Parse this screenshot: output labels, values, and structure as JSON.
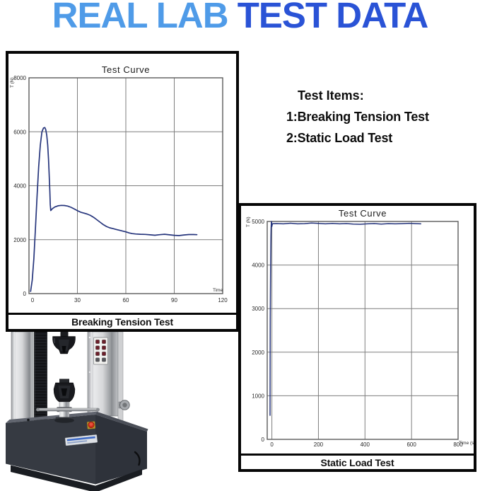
{
  "page_title": {
    "part1": "REAL LAB ",
    "part2": "TEST DATA",
    "part1_color": "#4F9BE8",
    "part2_color": "#2A53D6"
  },
  "test_items": {
    "heading": "Test Items:",
    "items": [
      "1:Breaking Tension Test",
      "2:Static Load Test"
    ]
  },
  "chart_data": [
    {
      "type": "line",
      "title": "Test Curve",
      "footer_label": "Breaking Tension Test",
      "xlabel": "Time",
      "ylabel": "T (N)",
      "xlim": [
        0,
        120
      ],
      "ylim": [
        0,
        8000
      ],
      "xticks": [
        0,
        30,
        60,
        90,
        120
      ],
      "yticks": [
        0,
        2000,
        4000,
        6000,
        8000
      ],
      "grid": true,
      "legend": "none",
      "line_color": "#26357C",
      "points": [
        [
          1,
          80
        ],
        [
          2,
          500
        ],
        [
          3,
          1300
        ],
        [
          4,
          2400
        ],
        [
          5,
          3600
        ],
        [
          6,
          4700
        ],
        [
          7,
          5500
        ],
        [
          8,
          6000
        ],
        [
          9,
          6140
        ],
        [
          9.8,
          6155
        ],
        [
          10.4,
          6080
        ],
        [
          11,
          5880
        ],
        [
          11.6,
          5500
        ],
        [
          12.1,
          5000
        ],
        [
          12.5,
          4450
        ],
        [
          12.9,
          3800
        ],
        [
          13.2,
          3300
        ],
        [
          13.5,
          3080
        ],
        [
          14.5,
          3150
        ],
        [
          16,
          3210
        ],
        [
          18,
          3255
        ],
        [
          20,
          3270
        ],
        [
          22,
          3265
        ],
        [
          24,
          3245
        ],
        [
          26,
          3200
        ],
        [
          28,
          3140
        ],
        [
          30,
          3075
        ],
        [
          32,
          3020
        ],
        [
          34,
          2985
        ],
        [
          36,
          2950
        ],
        [
          38,
          2900
        ],
        [
          40,
          2830
        ],
        [
          42,
          2740
        ],
        [
          44,
          2650
        ],
        [
          46,
          2560
        ],
        [
          48,
          2490
        ],
        [
          50,
          2440
        ],
        [
          52,
          2410
        ],
        [
          54,
          2380
        ],
        [
          56,
          2350
        ],
        [
          58,
          2320
        ],
        [
          60,
          2290
        ],
        [
          62,
          2250
        ],
        [
          64,
          2225
        ],
        [
          66,
          2210
        ],
        [
          69,
          2200
        ],
        [
          72,
          2195
        ],
        [
          75,
          2180
        ],
        [
          78,
          2165
        ],
        [
          81,
          2185
        ],
        [
          84,
          2200
        ],
        [
          87,
          2180
        ],
        [
          90,
          2160
        ],
        [
          93,
          2150
        ],
        [
          96,
          2175
        ],
        [
          99,
          2190
        ],
        [
          102,
          2190
        ],
        [
          104,
          2185
        ]
      ]
    },
    {
      "type": "line",
      "title": "Test Curve",
      "footer_label": "Static Load Test",
      "xlabel": "Time (s)",
      "ylabel": "T (N)",
      "xlim": [
        -20,
        800
      ],
      "ylim": [
        0,
        5000
      ],
      "xticks": [
        0,
        200,
        400,
        600,
        800
      ],
      "yticks": [
        0,
        1000,
        2000,
        3000,
        4000,
        5000
      ],
      "grid": true,
      "legend": "none",
      "line_color": "#26357C",
      "points": [
        [
          -8,
          550
        ],
        [
          -7.6,
          1300
        ],
        [
          -7.2,
          2100
        ],
        [
          -6.8,
          2750
        ],
        [
          -6.3,
          3300
        ],
        [
          -5.8,
          3750
        ],
        [
          -5.2,
          4150
        ],
        [
          -4.6,
          4450
        ],
        [
          -4,
          4680
        ],
        [
          -3.2,
          4850
        ],
        [
          -2.4,
          4960
        ],
        [
          -1.6,
          5000
        ],
        [
          -0.8,
          4930
        ],
        [
          0,
          4885
        ],
        [
          1.5,
          4930
        ],
        [
          4,
          4950
        ],
        [
          20,
          4952
        ],
        [
          50,
          4945
        ],
        [
          80,
          4960
        ],
        [
          110,
          4945
        ],
        [
          140,
          4950
        ],
        [
          170,
          4965
        ],
        [
          200,
          4955
        ],
        [
          230,
          4945
        ],
        [
          260,
          4955
        ],
        [
          290,
          4945
        ],
        [
          320,
          4952
        ],
        [
          350,
          4940
        ],
        [
          380,
          4935
        ],
        [
          410,
          4945
        ],
        [
          440,
          4952
        ],
        [
          470,
          4940
        ],
        [
          500,
          4950
        ],
        [
          530,
          4945
        ],
        [
          560,
          4950
        ],
        [
          590,
          4957
        ],
        [
          620,
          4950
        ],
        [
          640,
          4945
        ]
      ]
    }
  ]
}
